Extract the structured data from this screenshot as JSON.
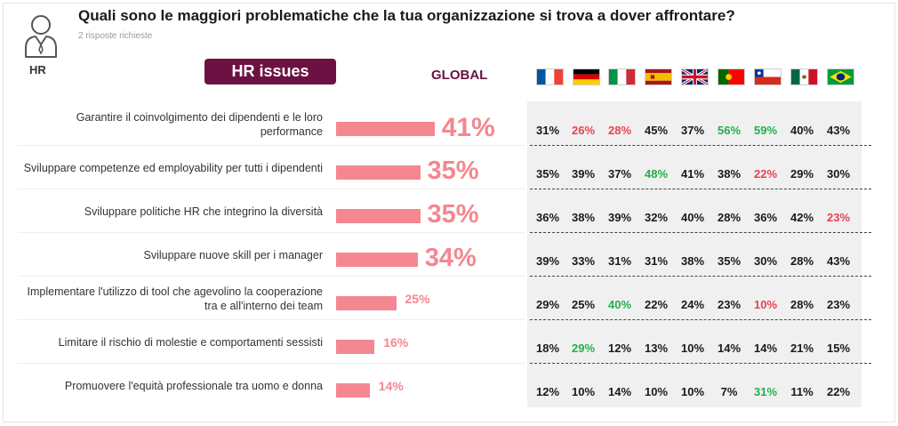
{
  "header": {
    "title": "Quali sono le maggiori problematiche che la tua organizzazione si trova a dover affrontare?",
    "subtitle": "2 risposte richieste",
    "hr_label": "HR"
  },
  "badge": {
    "label": "HR issues"
  },
  "global_label": "GLOBAL",
  "countries": [
    {
      "name": "France",
      "flag": "france-flag-icon"
    },
    {
      "name": "Germany",
      "flag": "germany-flag-icon"
    },
    {
      "name": "Italy",
      "flag": "italy-flag-icon"
    },
    {
      "name": "Spain",
      "flag": "spain-flag-icon"
    },
    {
      "name": "United Kingdom",
      "flag": "uk-flag-icon"
    },
    {
      "name": "Portugal",
      "flag": "portugal-flag-icon"
    },
    {
      "name": "Chile",
      "flag": "chile-flag-icon"
    },
    {
      "name": "Mexico",
      "flag": "mexico-flag-icon"
    },
    {
      "name": "Brazil",
      "flag": "brazil-flag-icon"
    }
  ],
  "colors": {
    "bar": "#f4878f",
    "badge": "#6b1242",
    "high": "#22b04b",
    "low": "#e8424f",
    "normal": "#1a1a1a"
  },
  "chart_data": {
    "type": "bar",
    "title": "HR issues",
    "categories": [
      "Garantire il coinvolgimento dei dipendenti e le loro performance",
      "Sviluppare competenze ed employability per tutti i dipendenti",
      "Sviluppare politiche HR che integrino la diversità",
      "Sviluppare nuove skill per i manager",
      "Implementare l'utilizzo di tool che agevolino la cooperazione tra e all'interno dei team",
      "Limitare il rischio di molestie e comportamenti sessisti",
      "Promuovere l'equità professionale tra uomo e donna"
    ],
    "values": [
      41,
      35,
      35,
      34,
      25,
      16,
      14
    ],
    "value_labels": [
      "41%",
      "35%",
      "35%",
      "34%",
      "25%",
      "16%",
      "14%"
    ],
    "unit": "%",
    "country_table": [
      {
        "cells": [
          "31%",
          "26%",
          "28%",
          "45%",
          "37%",
          "56%",
          "59%",
          "40%",
          "43%"
        ],
        "highlight": [
          "",
          "low",
          "low",
          "",
          "",
          "high",
          "high",
          "",
          ""
        ]
      },
      {
        "cells": [
          "35%",
          "39%",
          "37%",
          "48%",
          "41%",
          "38%",
          "22%",
          "29%",
          "30%"
        ],
        "highlight": [
          "",
          "",
          "",
          "high",
          "",
          "",
          "low",
          "",
          ""
        ]
      },
      {
        "cells": [
          "36%",
          "38%",
          "39%",
          "32%",
          "40%",
          "28%",
          "36%",
          "42%",
          "23%"
        ],
        "highlight": [
          "",
          "",
          "",
          "",
          "",
          "",
          "",
          "",
          "low"
        ]
      },
      {
        "cells": [
          "39%",
          "33%",
          "31%",
          "31%",
          "38%",
          "35%",
          "30%",
          "28%",
          "43%"
        ],
        "highlight": [
          "",
          "",
          "",
          "",
          "",
          "",
          "",
          "",
          ""
        ]
      },
      {
        "cells": [
          "29%",
          "25%",
          "40%",
          "22%",
          "24%",
          "23%",
          "10%",
          "28%",
          "23%"
        ],
        "highlight": [
          "",
          "",
          "high",
          "",
          "",
          "",
          "low",
          "",
          ""
        ]
      },
      {
        "cells": [
          "18%",
          "29%",
          "12%",
          "13%",
          "10%",
          "14%",
          "14%",
          "21%",
          "15%"
        ],
        "highlight": [
          "",
          "high",
          "",
          "",
          "",
          "",
          "",
          "",
          ""
        ]
      },
      {
        "cells": [
          "12%",
          "10%",
          "14%",
          "10%",
          "10%",
          "7%",
          "31%",
          "11%",
          "22%"
        ],
        "highlight": [
          "",
          "",
          "",
          "",
          "",
          "",
          "high",
          "",
          ""
        ]
      }
    ]
  }
}
